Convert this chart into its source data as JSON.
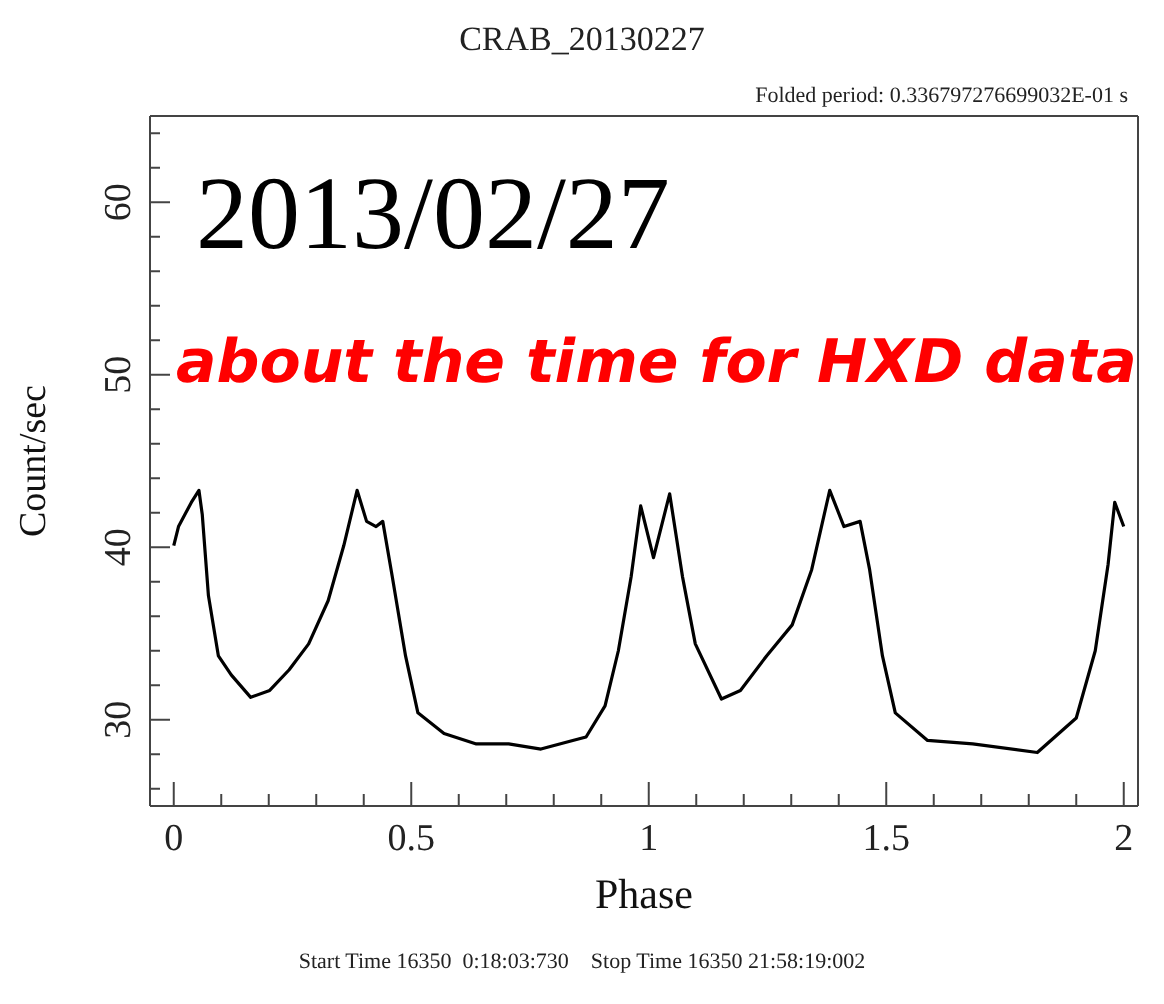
{
  "chart_data": {
    "type": "line",
    "title": "CRAB_20130227",
    "subtitle": "Folded period: 0.336797276699032E-01 s",
    "xlabel": "Phase",
    "ylabel": "Count/sec",
    "annotations": [
      "2013/02/27",
      "about the time for HXD data",
      "Start Time 16350  0:18:03:730    Stop Time 16350 21:58:19:002"
    ],
    "xlim": [
      -0.05,
      2.03
    ],
    "ylim": [
      25,
      65
    ],
    "xticks": [
      0,
      {
        "value": 0.1,
        "label": null
      },
      {
        "value": 0.2,
        "label": null
      },
      {
        "value": 0.3,
        "label": null
      },
      {
        "value": 0.4,
        "label": null
      },
      0.5,
      {
        "value": 0.6,
        "label": null
      },
      {
        "value": 0.7,
        "label": null
      },
      {
        "value": 0.8,
        "label": null
      },
      {
        "value": 0.9,
        "label": null
      },
      1,
      {
        "value": 1.1,
        "label": null
      },
      {
        "value": 1.2,
        "label": null
      },
      {
        "value": 1.3,
        "label": null
      },
      {
        "value": 1.4,
        "label": null
      },
      1.5,
      {
        "value": 1.6,
        "label": null
      },
      {
        "value": 1.7,
        "label": null
      },
      {
        "value": 1.8,
        "label": null
      },
      {
        "value": 1.9,
        "label": null
      },
      2
    ],
    "yticks": [
      {
        "value": 26,
        "label": null
      },
      {
        "value": 28,
        "label": null
      },
      30,
      {
        "value": 32,
        "label": null
      },
      {
        "value": 34,
        "label": null
      },
      {
        "value": 36,
        "label": null
      },
      {
        "value": 38,
        "label": null
      },
      40,
      {
        "value": 42,
        "label": null
      },
      {
        "value": 44,
        "label": null
      },
      {
        "value": 46,
        "label": null
      },
      {
        "value": 48,
        "label": null
      },
      50,
      {
        "value": 52,
        "label": null
      },
      {
        "value": 54,
        "label": null
      },
      {
        "value": 56,
        "label": null
      },
      {
        "value": 58,
        "label": null
      },
      60,
      {
        "value": 62,
        "label": null
      },
      {
        "value": 64,
        "label": null
      }
    ],
    "marker": "none",
    "line_style": "solid",
    "series": [
      {
        "color": "#000000",
        "x": [
          0,
          0.01,
          0.037,
          0.053,
          0.06,
          0.073,
          0.094,
          0.121,
          0.162,
          0.202,
          0.243,
          0.284,
          0.325,
          0.358,
          0.386,
          0.406,
          0.426,
          0.44,
          0.46,
          0.488,
          0.514,
          0.569,
          0.637,
          0.705,
          0.773,
          0.84,
          0.868,
          0.908,
          0.936,
          0.963,
          0.983,
          1.01,
          1.044,
          1.071,
          1.098,
          1.153,
          1.193,
          1.248,
          1.302,
          1.343,
          1.381,
          1.411,
          1.445,
          1.465,
          1.492,
          1.519,
          1.587,
          1.682,
          1.818,
          1.9,
          1.94,
          1.967,
          1.981,
          2.0
        ],
        "values": [
          40.1,
          41.2,
          42.6,
          43.3,
          41.9,
          37.2,
          33.7,
          32.6,
          31.3,
          31.7,
          32.9,
          34.4,
          36.9,
          40.1,
          43.3,
          41.5,
          41.2,
          41.5,
          38.3,
          33.7,
          30.4,
          29.2,
          28.6,
          28.6,
          28.3,
          28.8,
          29,
          30.8,
          34,
          38.3,
          42.4,
          39.4,
          43.1,
          38.3,
          34.4,
          31.2,
          31.7,
          33.7,
          35.5,
          38.7,
          43.3,
          41.2,
          41.5,
          38.7,
          33.7,
          30.4,
          28.8,
          28.6,
          28.1,
          30.1,
          34,
          39,
          42.6,
          41.2
        ]
      }
    ]
  }
}
